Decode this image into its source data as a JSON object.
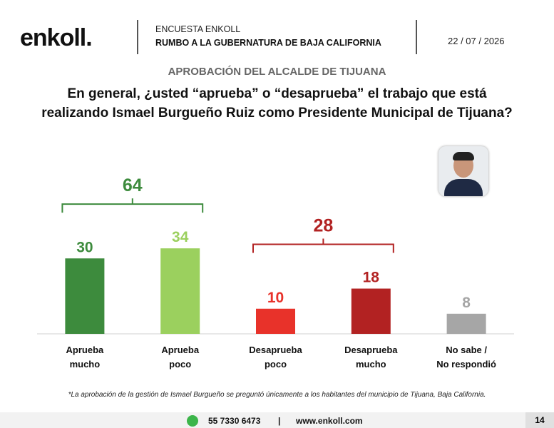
{
  "header": {
    "logo": "enkoll.",
    "survey": "ENCUESTA ENKOLL",
    "subtitle": "RUMBO A LA GUBERNATURA DE BAJA CALIFORNIA",
    "date": "22 / 07 / 2026"
  },
  "chart_data": {
    "type": "bar",
    "section": "APROBACIÓN DEL ALCALDE DE TIJUANA",
    "title": "En general, ¿usted “aprueba” o “desaprueba” el trabajo que está\nrealizando Ismael Burgueño Ruiz como Presidente Municipal de Tijuana?",
    "categories": [
      "Aprueba\nmucho",
      "Aprueba\npoco",
      "Desaprueba\npoco",
      "Desaprueba\nmucho",
      "No sabe /\nNo respondió"
    ],
    "values": [
      30,
      34,
      10,
      18,
      8
    ],
    "colors": [
      "#3d8b3d",
      "#9bd05e",
      "#e8322a",
      "#b22222",
      "#a6a6a6"
    ],
    "ylim": [
      0,
      40
    ],
    "groups": [
      {
        "value": 64,
        "color": "#3d8b3d",
        "span": [
          0,
          1
        ]
      },
      {
        "value": 28,
        "color": "#b22222",
        "span": [
          2,
          3
        ]
      }
    ],
    "footnote": "*La aprobación de la gestión de Ismael Burgueño se preguntó únicamente a los habitantes del municipio de Tijuana, Baja California."
  },
  "footer": {
    "phone": "55 7330 6473",
    "separator": "|",
    "website": "www.enkoll.com",
    "page": "14"
  }
}
